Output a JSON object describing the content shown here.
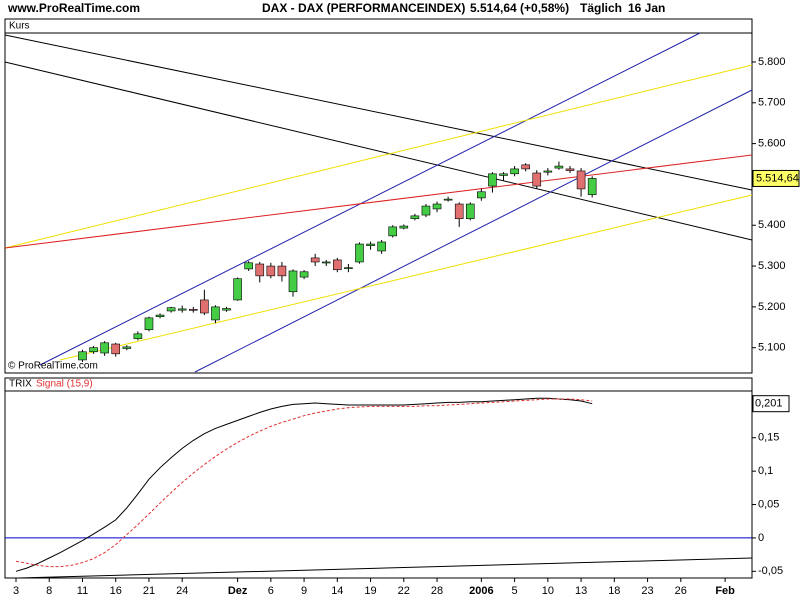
{
  "header": {
    "site": "www.ProRealTime.com",
    "instrument": "DAX - DAX (PERFORMANCEINDEX)",
    "quote": "5.514,64 (+0,58%)",
    "period": "Täglich",
    "date": "16 Jan"
  },
  "watermark": "© ProRealTime.com",
  "chart_data": [
    {
      "type": "candlestick",
      "title": "Kurs",
      "categories": [
        "3",
        null,
        null,
        "8",
        null,
        null,
        "11",
        null,
        null,
        "16",
        null,
        null,
        "21",
        null,
        null,
        "24",
        null,
        null,
        null,
        null,
        "Dez",
        null,
        null,
        "6",
        null,
        null,
        "9",
        null,
        null,
        "14",
        null,
        null,
        "19",
        null,
        null,
        "22",
        null,
        null,
        "28",
        null,
        null,
        null,
        "2006",
        null,
        null,
        "5",
        null,
        null,
        "10",
        null,
        null,
        "13",
        null,
        null,
        "18",
        null,
        null,
        "23",
        null,
        null,
        "26",
        null,
        null,
        null,
        "Feb",
        null
      ],
      "open": [
        null,
        null,
        null,
        null,
        null,
        null,
        5070,
        5090,
        5087,
        5109,
        5098,
        5122,
        5144,
        5176,
        5190,
        5192,
        5194,
        5217,
        5168,
        5192,
        5217,
        5293,
        5305,
        5300,
        5300,
        5237,
        5273,
        5320,
        5308,
        5315,
        5295,
        5310,
        5350,
        5337,
        5374,
        5393,
        5416,
        5425,
        5440,
        5462,
        5452,
        5416,
        5467,
        5496,
        5522,
        5526,
        5548,
        5528,
        5530,
        5540,
        5538,
        5533,
        5475,
        null,
        null,
        null,
        null,
        null,
        null,
        null,
        null,
        null,
        null,
        null,
        null,
        null
      ],
      "high": [
        null,
        null,
        null,
        null,
        null,
        null,
        5095,
        5104,
        5116,
        5112,
        5106,
        5140,
        5176,
        5184,
        5200,
        5203,
        5200,
        5242,
        5204,
        5200,
        5272,
        5312,
        5310,
        5308,
        5310,
        5292,
        5290,
        5330,
        5315,
        5320,
        5305,
        5358,
        5360,
        5364,
        5400,
        5402,
        5428,
        5452,
        5458,
        5470,
        5456,
        5456,
        5490,
        5530,
        5530,
        5545,
        5552,
        5535,
        5540,
        5556,
        5545,
        5540,
        5520,
        null,
        null,
        null,
        null,
        null,
        null,
        null,
        null,
        null,
        null,
        null,
        null,
        null
      ],
      "low": [
        null,
        null,
        null,
        null,
        null,
        null,
        5065,
        5085,
        5080,
        5078,
        5094,
        5118,
        5140,
        5172,
        5186,
        5186,
        5186,
        5180,
        5160,
        5188,
        5215,
        5288,
        5260,
        5270,
        5262,
        5225,
        5268,
        5300,
        5300,
        5285,
        5285,
        5306,
        5340,
        5330,
        5370,
        5390,
        5412,
        5420,
        5432,
        5458,
        5396,
        5412,
        5460,
        5480,
        5510,
        5520,
        5532,
        5490,
        5522,
        5536,
        5528,
        5470,
        5468,
        null,
        null,
        null,
        null,
        null,
        null,
        null,
        null,
        null,
        null,
        null,
        null,
        null
      ],
      "close": [
        null,
        null,
        null,
        null,
        null,
        null,
        5090,
        5100,
        5112,
        5085,
        5102,
        5134,
        5173,
        5180,
        5198,
        5195,
        5193,
        5185,
        5200,
        5196,
        5269,
        5308,
        5276,
        5276,
        5276,
        5288,
        5286,
        5310,
        5310,
        5291,
        5296,
        5354,
        5354,
        5359,
        5396,
        5398,
        5423,
        5447,
        5452,
        5464,
        5416,
        5452,
        5482,
        5526,
        5526,
        5538,
        5538,
        5496,
        5533,
        5545,
        5534,
        5489,
        5514.64,
        null,
        null,
        null,
        null,
        null,
        null,
        null,
        null,
        null,
        null,
        null,
        null,
        null
      ],
      "up_color": "#44cc44",
      "down_color": "#e07070",
      "ylim": [
        5038,
        5871
      ],
      "yticks": [
        {
          "value": 5100,
          "label": "5.100"
        },
        {
          "value": 5200,
          "label": "5.200"
        },
        {
          "value": 5300,
          "label": "5.300"
        },
        {
          "value": 5400,
          "label": "5.400"
        },
        {
          "value": 5600,
          "label": "5.600"
        },
        {
          "value": 5700,
          "label": "5.700"
        },
        {
          "value": 5800,
          "label": "5.800"
        }
      ],
      "last_value": {
        "value": 5514.64,
        "label": "5.514,64"
      }
    },
    {
      "type": "line",
      "series": [
        {
          "name": "TRIX",
          "color": "#000000",
          "dashed": false,
          "values": [
            -0.05,
            -0.045,
            -0.038,
            -0.03,
            -0.022,
            -0.013,
            -0.004,
            0.006,
            0.016,
            0.027,
            0.045,
            0.066,
            0.088,
            0.105,
            0.12,
            0.134,
            0.146,
            0.156,
            0.164,
            0.17,
            0.176,
            0.182,
            0.188,
            0.193,
            0.197,
            0.2,
            0.201,
            0.202,
            0.201,
            0.2,
            0.199,
            0.199,
            0.199,
            0.199,
            0.199,
            0.199,
            0.2,
            0.201,
            0.202,
            0.203,
            0.203,
            0.204,
            0.204,
            0.205,
            0.206,
            0.207,
            0.208,
            0.209,
            0.209,
            0.208,
            0.207,
            0.205,
            0.201,
            null,
            null,
            null,
            null,
            null,
            null,
            null,
            null,
            null,
            null,
            null,
            null,
            null
          ]
        },
        {
          "name": "Signal (15,9)",
          "color": "#e03030",
          "dashed": true,
          "values": [
            -0.035,
            -0.038,
            -0.041,
            -0.043,
            -0.043,
            -0.041,
            -0.037,
            -0.031,
            -0.022,
            -0.01,
            0.005,
            0.02,
            0.036,
            0.052,
            0.068,
            0.083,
            0.097,
            0.11,
            0.122,
            0.133,
            0.143,
            0.152,
            0.16,
            0.167,
            0.173,
            0.178,
            0.183,
            0.187,
            0.19,
            0.193,
            0.195,
            0.196,
            0.197,
            0.197,
            0.197,
            0.197,
            0.197,
            0.198,
            0.198,
            0.199,
            0.2,
            0.201,
            0.202,
            0.203,
            0.204,
            0.205,
            0.206,
            0.207,
            0.208,
            0.208,
            0.208,
            0.207,
            0.205,
            null,
            null,
            null,
            null,
            null,
            null,
            null,
            null,
            null,
            null,
            null,
            null,
            null
          ]
        }
      ],
      "ylim": [
        -0.06,
        0.22
      ],
      "yticks": [
        {
          "value": -0.05,
          "label": "-0,05"
        },
        0,
        {
          "value": 0.05,
          "label": "0,05"
        },
        {
          "value": 0.1,
          "label": "0,1"
        },
        {
          "value": 0.15,
          "label": "0,15"
        }
      ],
      "zero_line_color": "#0000cc",
      "last_value": {
        "value": 0.201,
        "label": "0,201"
      }
    }
  ]
}
